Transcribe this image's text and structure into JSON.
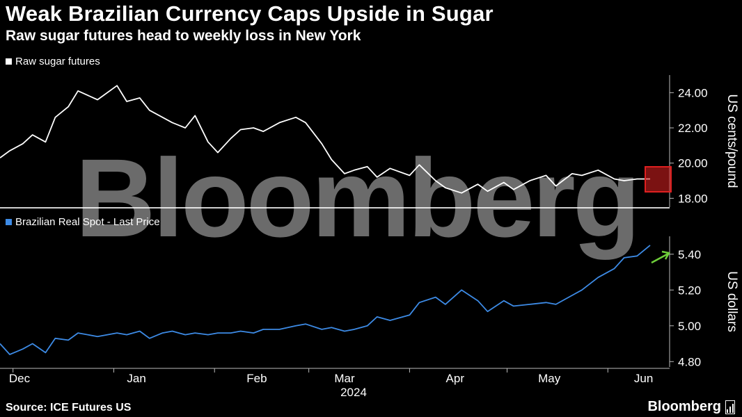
{
  "title": "Weak Brazilian Currency Caps Upside in Sugar",
  "subtitle": "Raw sugar futures head to weekly loss in New York",
  "watermark": "Bloomberg",
  "source": "Source: ICE Futures US",
  "brand": "Bloomberg",
  "colors": {
    "sugar": "#ffffff",
    "brl": "#3d8be6",
    "highlight": "#e02020",
    "arrow": "#6fcf3a"
  },
  "chart_data": [
    {
      "type": "line",
      "legend": "Raw sugar futures",
      "ylabel": "US cents/pound",
      "yticks": [
        "24.00",
        "22.00",
        "20.00",
        "18.00"
      ],
      "ylim": [
        17.5,
        25.0
      ],
      "x": [
        "2023-11-27",
        "2023-11-30",
        "2023-12-04",
        "2023-12-07",
        "2023-12-11",
        "2023-12-14",
        "2023-12-18",
        "2023-12-21",
        "2023-12-27",
        "2024-01-02",
        "2024-01-05",
        "2024-01-09",
        "2024-01-12",
        "2024-01-16",
        "2024-01-19",
        "2024-01-23",
        "2024-01-26",
        "2024-01-30",
        "2024-02-02",
        "2024-02-06",
        "2024-02-09",
        "2024-02-13",
        "2024-02-16",
        "2024-02-21",
        "2024-02-26",
        "2024-02-29",
        "2024-03-05",
        "2024-03-08",
        "2024-03-12",
        "2024-03-15",
        "2024-03-19",
        "2024-03-22",
        "2024-03-26",
        "2024-04-01",
        "2024-04-04",
        "2024-04-09",
        "2024-04-12",
        "2024-04-17",
        "2024-04-22",
        "2024-04-25",
        "2024-04-30",
        "2024-05-03",
        "2024-05-08",
        "2024-05-13",
        "2024-05-16",
        "2024-05-21",
        "2024-05-24",
        "2024-05-29",
        "2024-06-03",
        "2024-06-06",
        "2024-06-10",
        "2024-06-14"
      ],
      "y": [
        20.3,
        20.7,
        21.1,
        21.6,
        21.2,
        22.6,
        23.2,
        24.1,
        23.6,
        24.4,
        23.5,
        23.7,
        23.0,
        22.6,
        22.3,
        22.0,
        22.7,
        21.2,
        20.6,
        21.4,
        21.9,
        22.0,
        21.8,
        22.3,
        22.6,
        22.3,
        21.1,
        20.2,
        19.4,
        19.6,
        19.8,
        19.2,
        19.7,
        19.3,
        19.9,
        19.0,
        18.6,
        18.3,
        18.8,
        18.4,
        18.9,
        18.5,
        19.0,
        19.3,
        18.7,
        19.4,
        19.3,
        19.6,
        19.1,
        19.0,
        19.1,
        19.1
      ],
      "annotation": "highlight box on the latest readings"
    },
    {
      "type": "line",
      "legend": "Brazilian Real Spot - Last Price",
      "ylabel": "US dollars",
      "yticks": [
        "5.40",
        "5.20",
        "5.00",
        "4.80"
      ],
      "ylim": [
        4.77,
        5.5
      ],
      "x": [
        "2023-11-27",
        "2023-11-30",
        "2023-12-04",
        "2023-12-07",
        "2023-12-11",
        "2023-12-14",
        "2023-12-18",
        "2023-12-21",
        "2023-12-27",
        "2024-01-02",
        "2024-01-05",
        "2024-01-09",
        "2024-01-12",
        "2024-01-16",
        "2024-01-19",
        "2024-01-23",
        "2024-01-26",
        "2024-01-30",
        "2024-02-02",
        "2024-02-06",
        "2024-02-09",
        "2024-02-13",
        "2024-02-16",
        "2024-02-21",
        "2024-02-26",
        "2024-02-29",
        "2024-03-05",
        "2024-03-08",
        "2024-03-12",
        "2024-03-15",
        "2024-03-19",
        "2024-03-22",
        "2024-03-26",
        "2024-04-01",
        "2024-04-04",
        "2024-04-09",
        "2024-04-12",
        "2024-04-17",
        "2024-04-22",
        "2024-04-25",
        "2024-04-30",
        "2024-05-03",
        "2024-05-08",
        "2024-05-13",
        "2024-05-16",
        "2024-05-21",
        "2024-05-24",
        "2024-05-29",
        "2024-06-03",
        "2024-06-06",
        "2024-06-10",
        "2024-06-14"
      ],
      "y": [
        4.9,
        4.84,
        4.87,
        4.9,
        4.85,
        4.93,
        4.92,
        4.96,
        4.94,
        4.96,
        4.95,
        4.97,
        4.93,
        4.96,
        4.97,
        4.95,
        4.96,
        4.95,
        4.96,
        4.96,
        4.97,
        4.96,
        4.98,
        4.98,
        5.0,
        5.01,
        4.98,
        4.99,
        4.97,
        4.98,
        5.0,
        5.05,
        5.03,
        5.06,
        5.13,
        5.16,
        5.12,
        5.2,
        5.14,
        5.08,
        5.14,
        5.11,
        5.12,
        5.13,
        5.12,
        5.17,
        5.2,
        5.27,
        5.32,
        5.38,
        5.39,
        5.45
      ],
      "annotation": "green arrow pointing up at latest reading"
    }
  ],
  "x_axis": {
    "months": [
      "Dec",
      "Jan",
      "Feb",
      "Mar",
      "Apr",
      "May",
      "Jun"
    ],
    "year": "2024"
  }
}
